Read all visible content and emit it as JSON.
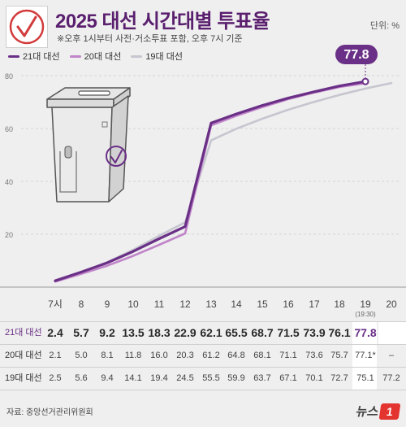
{
  "header": {
    "title": "2025 대선 시간대별 투표율",
    "subtitle": "※오후 1시부터 사전·거소투표 포함, 오후 7시 기준",
    "unit": "단위: %"
  },
  "colors": {
    "series_21": "#6a2f86",
    "series_20": "#c084c9",
    "series_19": "#c6c6d0",
    "title": "#5a1f6e",
    "callout": "#6a2f86"
  },
  "icons": {
    "logo": "ballot-check-icon",
    "illustration": "ballot-box-icon"
  },
  "callout": {
    "value": "77.8"
  },
  "chart_data": {
    "type": "line",
    "unit": "%",
    "x": [
      "7시",
      "8",
      "9",
      "10",
      "11",
      "12",
      "13",
      "14",
      "15",
      "16",
      "17",
      "18",
      "19",
      "20"
    ],
    "x_sublabel": "(19:30)",
    "ylim": [
      0,
      85
    ],
    "yticks": [
      "20",
      "40",
      "60",
      "80"
    ],
    "grid": true,
    "legend_position": "top-left",
    "series": [
      {
        "name": "21대 대선",
        "values": [
          2.4,
          5.7,
          9.2,
          13.5,
          18.3,
          22.9,
          62.1,
          65.5,
          68.7,
          71.5,
          73.9,
          76.1,
          77.8,
          null
        ],
        "labels": [
          "2.4",
          "5.7",
          "9.2",
          "13.5",
          "18.3",
          "22.9",
          "62.1",
          "65.5",
          "68.7",
          "71.5",
          "73.9",
          "76.1",
          "77.8",
          ""
        ]
      },
      {
        "name": "20대 대선",
        "values": [
          2.1,
          5.0,
          8.1,
          11.8,
          16.0,
          20.3,
          61.2,
          64.8,
          68.1,
          71.1,
          73.6,
          75.7,
          77.1,
          null
        ],
        "labels": [
          "2.1",
          "5.0",
          "8.1",
          "11.8",
          "16.0",
          "20.3",
          "61.2",
          "64.8",
          "68.1",
          "71.1",
          "73.6",
          "75.7",
          "77.1*",
          "–"
        ]
      },
      {
        "name": "19대 대선",
        "values": [
          2.5,
          5.6,
          9.4,
          14.1,
          19.4,
          24.5,
          55.5,
          59.9,
          63.7,
          67.1,
          70.1,
          72.7,
          75.1,
          77.2
        ],
        "labels": [
          "2.5",
          "5.6",
          "9.4",
          "14.1",
          "19.4",
          "24.5",
          "55.5",
          "59.9",
          "63.7",
          "67.1",
          "70.1",
          "72.7",
          "75.1",
          "77.2"
        ]
      }
    ]
  },
  "footer": {
    "source": "자료: 중앙선거관리위원회",
    "brand": "뉴스",
    "brand_badge": "1"
  }
}
